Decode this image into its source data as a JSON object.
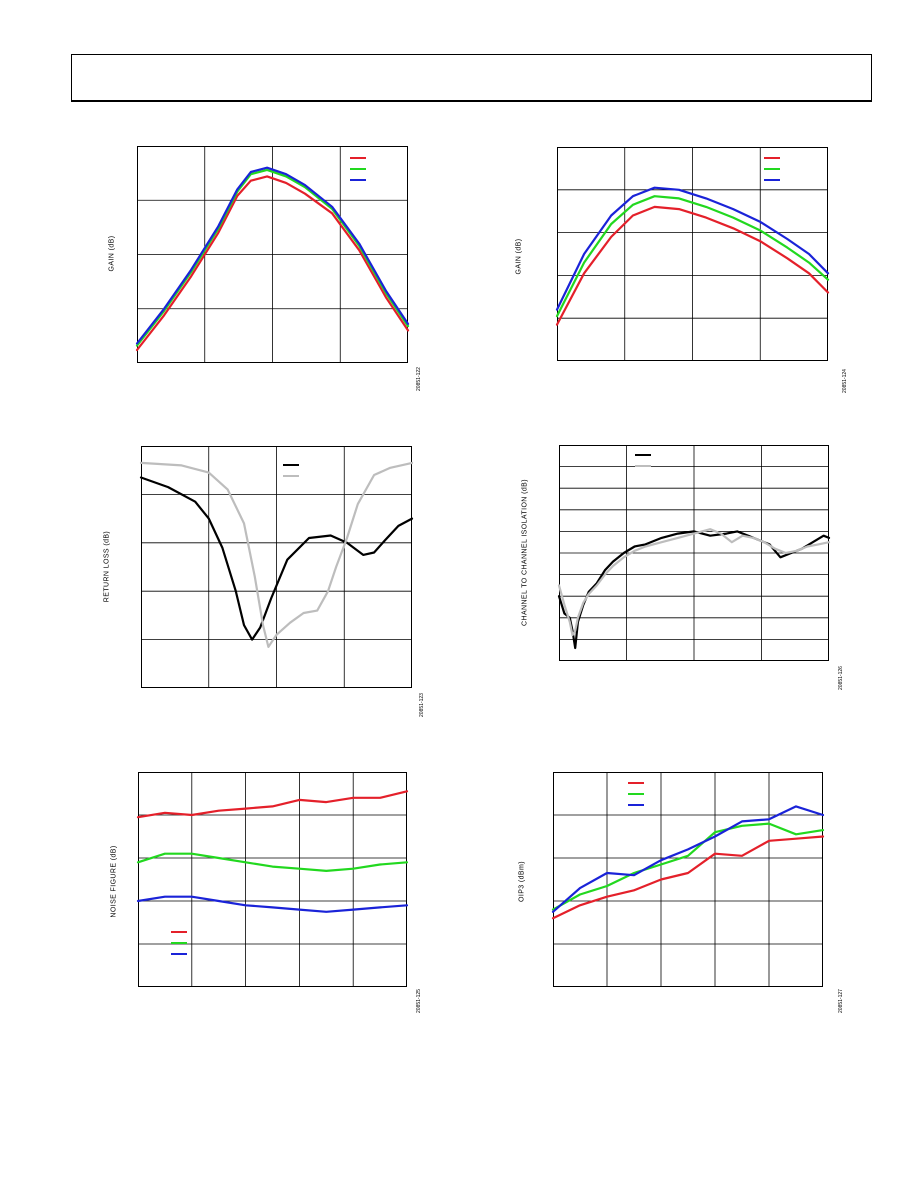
{
  "page": {
    "header": ""
  },
  "chart_data": [
    {
      "id": "c1",
      "type": "line",
      "ylabel": "GAIN (dB)",
      "fig_id": "20851-122",
      "xlim": [
        0,
        100
      ],
      "ylim": [
        0,
        100
      ],
      "grid": {
        "x": 4,
        "y": 4
      },
      "legend": "top-right",
      "series": [
        {
          "color": "#e4202a",
          "points": [
            [
              0,
              6
            ],
            [
              10,
              22
            ],
            [
              20,
              40
            ],
            [
              30,
              60
            ],
            [
              37,
              77
            ],
            [
              42,
              84
            ],
            [
              48,
              86
            ],
            [
              55,
              83
            ],
            [
              62,
              78
            ],
            [
              72,
              69
            ],
            [
              82,
              52
            ],
            [
              92,
              30
            ],
            [
              100,
              15
            ]
          ]
        },
        {
          "color": "#22d81f",
          "points": [
            [
              0,
              8
            ],
            [
              10,
              24
            ],
            [
              20,
              42
            ],
            [
              30,
              62
            ],
            [
              37,
              79
            ],
            [
              42,
              87
            ],
            [
              48,
              89
            ],
            [
              55,
              86
            ],
            [
              62,
              81
            ],
            [
              72,
              71
            ],
            [
              82,
              54
            ],
            [
              92,
              32
            ],
            [
              100,
              17
            ]
          ]
        },
        {
          "color": "#1a23d8",
          "points": [
            [
              0,
              9
            ],
            [
              10,
              25
            ],
            [
              20,
              43
            ],
            [
              30,
              63
            ],
            [
              37,
              80
            ],
            [
              42,
              88
            ],
            [
              48,
              90
            ],
            [
              55,
              87
            ],
            [
              62,
              82
            ],
            [
              72,
              72
            ],
            [
              82,
              55
            ],
            [
              92,
              33
            ],
            [
              100,
              18
            ]
          ]
        }
      ]
    },
    {
      "id": "c2",
      "type": "line",
      "ylabel": "GAIN (dB)",
      "fig_id": "20851-124",
      "xlim": [
        0,
        100
      ],
      "ylim": [
        0,
        100
      ],
      "grid": {
        "x": 4,
        "y": 5
      },
      "legend": "top-right",
      "series": [
        {
          "color": "#e4202a",
          "points": [
            [
              0,
              17
            ],
            [
              10,
              41
            ],
            [
              20,
              58
            ],
            [
              28,
              68
            ],
            [
              36,
              72
            ],
            [
              45,
              71
            ],
            [
              55,
              67
            ],
            [
              65,
              62
            ],
            [
              75,
              56
            ],
            [
              85,
              48
            ],
            [
              93,
              41
            ],
            [
              100,
              32
            ]
          ]
        },
        {
          "color": "#22d81f",
          "points": [
            [
              0,
              21
            ],
            [
              10,
              46
            ],
            [
              20,
              64
            ],
            [
              28,
              73
            ],
            [
              36,
              77
            ],
            [
              45,
              76
            ],
            [
              55,
              72
            ],
            [
              65,
              67
            ],
            [
              75,
              61
            ],
            [
              85,
              53
            ],
            [
              93,
              46
            ],
            [
              100,
              38
            ]
          ]
        },
        {
          "color": "#1a23d8",
          "points": [
            [
              0,
              24
            ],
            [
              10,
              50
            ],
            [
              20,
              68
            ],
            [
              28,
              77
            ],
            [
              36,
              81
            ],
            [
              45,
              80
            ],
            [
              55,
              76
            ],
            [
              65,
              71
            ],
            [
              75,
              65
            ],
            [
              85,
              57
            ],
            [
              93,
              50
            ],
            [
              100,
              41
            ]
          ]
        }
      ]
    },
    {
      "id": "c3",
      "type": "line",
      "ylabel": "RETURN LOSS (dB)",
      "fig_id": "20851-123",
      "xlim": [
        0,
        100
      ],
      "ylim": [
        0,
        100
      ],
      "grid": {
        "x": 4,
        "y": 5
      },
      "legend": "top-right",
      "series": [
        {
          "color": "#000000",
          "points": [
            [
              0,
              87
            ],
            [
              10,
              83
            ],
            [
              20,
              77
            ],
            [
              25,
              70
            ],
            [
              30,
              58
            ],
            [
              35,
              40
            ],
            [
              38,
              26
            ],
            [
              41,
              20
            ],
            [
              44,
              25
            ],
            [
              48,
              37
            ],
            [
              54,
              53
            ],
            [
              62,
              62
            ],
            [
              70,
              63
            ],
            [
              76,
              60
            ],
            [
              82,
              55
            ],
            [
              86,
              56
            ],
            [
              90,
              61
            ],
            [
              95,
              67
            ],
            [
              100,
              70
            ]
          ]
        },
        {
          "color": "#bdbdbd",
          "points": [
            [
              0,
              93
            ],
            [
              15,
              92
            ],
            [
              25,
              89
            ],
            [
              32,
              82
            ],
            [
              38,
              68
            ],
            [
              42,
              46
            ],
            [
              45,
              26
            ],
            [
              47,
              17
            ],
            [
              50,
              22
            ],
            [
              55,
              27
            ],
            [
              60,
              31
            ],
            [
              65,
              32
            ],
            [
              69,
              40
            ],
            [
              72,
              50
            ],
            [
              76,
              62
            ],
            [
              80,
              76
            ],
            [
              86,
              88
            ],
            [
              92,
              91
            ],
            [
              100,
              93
            ]
          ]
        }
      ]
    },
    {
      "id": "c4",
      "type": "line",
      "ylabel": "CHANNEL TO CHANNEL ISOLATION (dB)",
      "fig_id": "20851-126",
      "xlim": [
        0,
        100
      ],
      "ylim": [
        0,
        100
      ],
      "grid": {
        "x": 4,
        "y": 10
      },
      "legend": "top-left",
      "series": [
        {
          "color": "#000000",
          "points": [
            [
              0,
              30
            ],
            [
              2,
              22
            ],
            [
              4,
              20
            ],
            [
              5,
              14
            ],
            [
              6,
              6
            ],
            [
              7,
              18
            ],
            [
              9,
              26
            ],
            [
              11,
              32
            ],
            [
              14,
              36
            ],
            [
              17,
              42
            ],
            [
              20,
              46
            ],
            [
              24,
              50
            ],
            [
              28,
              53
            ],
            [
              32,
              54
            ],
            [
              38,
              57
            ],
            [
              44,
              59
            ],
            [
              50,
              60
            ],
            [
              56,
              58
            ],
            [
              62,
              59
            ],
            [
              66,
              60
            ],
            [
              70,
              58
            ],
            [
              74,
              56
            ],
            [
              78,
              54
            ],
            [
              82,
              48
            ],
            [
              86,
              50
            ],
            [
              90,
              52
            ],
            [
              94,
              55
            ],
            [
              98,
              58
            ],
            [
              100,
              57
            ]
          ]
        },
        {
          "color": "#bdbdbd",
          "points": [
            [
              0,
              35
            ],
            [
              2,
              26
            ],
            [
              4,
              18
            ],
            [
              5,
              12
            ],
            [
              6,
              14
            ],
            [
              7,
              20
            ],
            [
              9,
              27
            ],
            [
              11,
              31
            ],
            [
              14,
              35
            ],
            [
              17,
              40
            ],
            [
              20,
              44
            ],
            [
              24,
              48
            ],
            [
              28,
              51
            ],
            [
              32,
              53
            ],
            [
              38,
              55
            ],
            [
              44,
              57
            ],
            [
              50,
              59
            ],
            [
              56,
              61
            ],
            [
              60,
              59
            ],
            [
              64,
              55
            ],
            [
              68,
              58
            ],
            [
              72,
              57
            ],
            [
              76,
              55
            ],
            [
              80,
              52
            ],
            [
              84,
              50
            ],
            [
              88,
              51
            ],
            [
              92,
              53
            ],
            [
              96,
              54
            ],
            [
              100,
              55
            ]
          ]
        }
      ]
    },
    {
      "id": "c5",
      "type": "line",
      "ylabel": "NOISE FIGURE (dB)",
      "fig_id": "20851-125",
      "xlim": [
        0,
        100
      ],
      "ylim": [
        0,
        100
      ],
      "grid": {
        "x": 5,
        "y": 5
      },
      "legend": "bottom-left",
      "series": [
        {
          "color": "#e4202a",
          "points": [
            [
              0,
              79
            ],
            [
              10,
              81
            ],
            [
              20,
              80
            ],
            [
              30,
              82
            ],
            [
              40,
              83
            ],
            [
              50,
              84
            ],
            [
              60,
              87
            ],
            [
              70,
              86
            ],
            [
              80,
              88
            ],
            [
              90,
              88
            ],
            [
              100,
              91
            ]
          ]
        },
        {
          "color": "#22d81f",
          "points": [
            [
              0,
              58
            ],
            [
              10,
              62
            ],
            [
              20,
              62
            ],
            [
              30,
              60
            ],
            [
              40,
              58
            ],
            [
              50,
              56
            ],
            [
              60,
              55
            ],
            [
              70,
              54
            ],
            [
              80,
              55
            ],
            [
              90,
              57
            ],
            [
              100,
              58
            ]
          ]
        },
        {
          "color": "#1a23d8",
          "points": [
            [
              0,
              40
            ],
            [
              10,
              42
            ],
            [
              20,
              42
            ],
            [
              30,
              40
            ],
            [
              40,
              38
            ],
            [
              50,
              37
            ],
            [
              60,
              36
            ],
            [
              70,
              35
            ],
            [
              80,
              36
            ],
            [
              90,
              37
            ],
            [
              100,
              38
            ]
          ]
        }
      ]
    },
    {
      "id": "c6",
      "type": "line",
      "ylabel": "OIP3 (dBm)",
      "fig_id": "20851-127",
      "xlim": [
        0,
        100
      ],
      "ylim": [
        0,
        100
      ],
      "grid": {
        "x": 5,
        "y": 5
      },
      "legend": "top-left",
      "series": [
        {
          "color": "#e4202a",
          "points": [
            [
              0,
              32
            ],
            [
              10,
              38
            ],
            [
              20,
              42
            ],
            [
              30,
              45
            ],
            [
              40,
              50
            ],
            [
              50,
              53
            ],
            [
              60,
              62
            ],
            [
              70,
              61
            ],
            [
              80,
              68
            ],
            [
              90,
              69
            ],
            [
              100,
              70
            ]
          ]
        },
        {
          "color": "#22d81f",
          "points": [
            [
              0,
              36
            ],
            [
              10,
              43
            ],
            [
              20,
              47
            ],
            [
              30,
              53
            ],
            [
              40,
              57
            ],
            [
              50,
              61
            ],
            [
              60,
              72
            ],
            [
              70,
              75
            ],
            [
              80,
              76
            ],
            [
              90,
              71
            ],
            [
              100,
              73
            ]
          ]
        },
        {
          "color": "#1a23d8",
          "points": [
            [
              0,
              35
            ],
            [
              10,
              46
            ],
            [
              20,
              53
            ],
            [
              30,
              52
            ],
            [
              40,
              59
            ],
            [
              50,
              64
            ],
            [
              60,
              70
            ],
            [
              70,
              77
            ],
            [
              80,
              78
            ],
            [
              90,
              84
            ],
            [
              100,
              80
            ]
          ]
        }
      ]
    }
  ]
}
